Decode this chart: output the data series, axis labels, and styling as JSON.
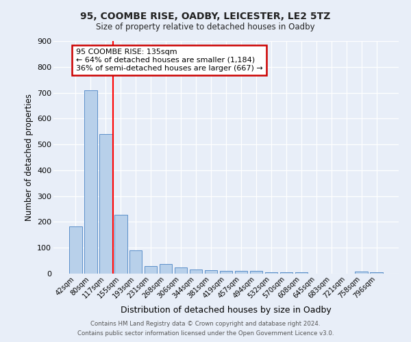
{
  "title": "95, COOMBE RISE, OADBY, LEICESTER, LE2 5TZ",
  "subtitle": "Size of property relative to detached houses in Oadby",
  "xlabel": "Distribution of detached houses by size in Oadby",
  "ylabel": "Number of detached properties",
  "categories": [
    "42sqm",
    "80sqm",
    "117sqm",
    "155sqm",
    "193sqm",
    "231sqm",
    "268sqm",
    "306sqm",
    "344sqm",
    "381sqm",
    "419sqm",
    "457sqm",
    "494sqm",
    "532sqm",
    "570sqm",
    "608sqm",
    "645sqm",
    "683sqm",
    "721sqm",
    "758sqm",
    "796sqm"
  ],
  "values": [
    183,
    710,
    540,
    228,
    90,
    28,
    38,
    25,
    15,
    12,
    10,
    10,
    11,
    6,
    6,
    5,
    0,
    0,
    0,
    9,
    4
  ],
  "bar_color": "#b8d0ea",
  "bar_edge_color": "#5b8fc9",
  "bg_color": "#e8eef8",
  "grid_color": "#ffffff",
  "red_line_index": 2,
  "annotation_text": "95 COOMBE RISE: 135sqm\n← 64% of detached houses are smaller (1,184)\n36% of semi-detached houses are larger (667) →",
  "annotation_box_color": "#ffffff",
  "annotation_box_edge": "#cc0000",
  "ylim": [
    0,
    900
  ],
  "yticks": [
    0,
    100,
    200,
    300,
    400,
    500,
    600,
    700,
    800,
    900
  ],
  "footer1": "Contains HM Land Registry data © Crown copyright and database right 2024.",
  "footer2": "Contains public sector information licensed under the Open Government Licence v3.0."
}
